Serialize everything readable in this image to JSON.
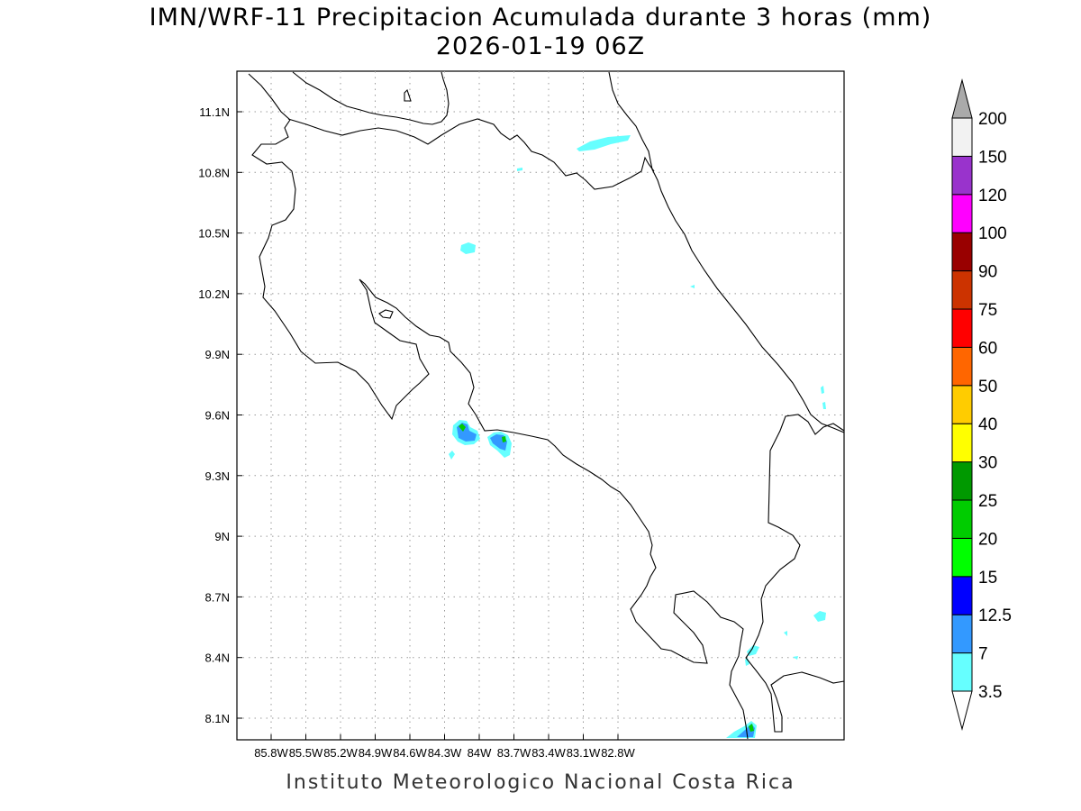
{
  "title": {
    "line1": "IMN/WRF-11 Precipitacion Acumulada durante 3 horas (mm)",
    "line2": "2026-01-19 06Z"
  },
  "credit": "Instituto Meteorologico Nacional Costa Rica",
  "map": {
    "lon_ticks": [
      "85.8W",
      "85.5W",
      "85.2W",
      "84.9W",
      "84.6W",
      "84.3W",
      "84W",
      "83.7W",
      "83.4W",
      "83.1W",
      "82.8W"
    ],
    "lat_ticks": [
      "11.1N",
      "10.8N",
      "10.5N",
      "10.2N",
      "9.9N",
      "9.6N",
      "9.3N",
      "9N",
      "8.7N",
      "8.4N",
      "8.1N"
    ],
    "coastline_color": "#000000",
    "gridline_style": "dotted"
  },
  "colorbar": {
    "labels": [
      "3.5",
      "7",
      "12.5",
      "15",
      "20",
      "25",
      "30",
      "40",
      "50",
      "60",
      "75",
      "90",
      "100",
      "120",
      "150",
      "200"
    ],
    "colors": [
      "#ffffff",
      "#66ffff",
      "#3399ff",
      "#0000ff",
      "#00ff00",
      "#00cc00",
      "#009900",
      "#ffff00",
      "#ffcc00",
      "#ff6600",
      "#ff0000",
      "#cc3300",
      "#990000",
      "#ff00ff",
      "#9933cc",
      "#f2f2f2",
      "#aaaaaa"
    ]
  }
}
